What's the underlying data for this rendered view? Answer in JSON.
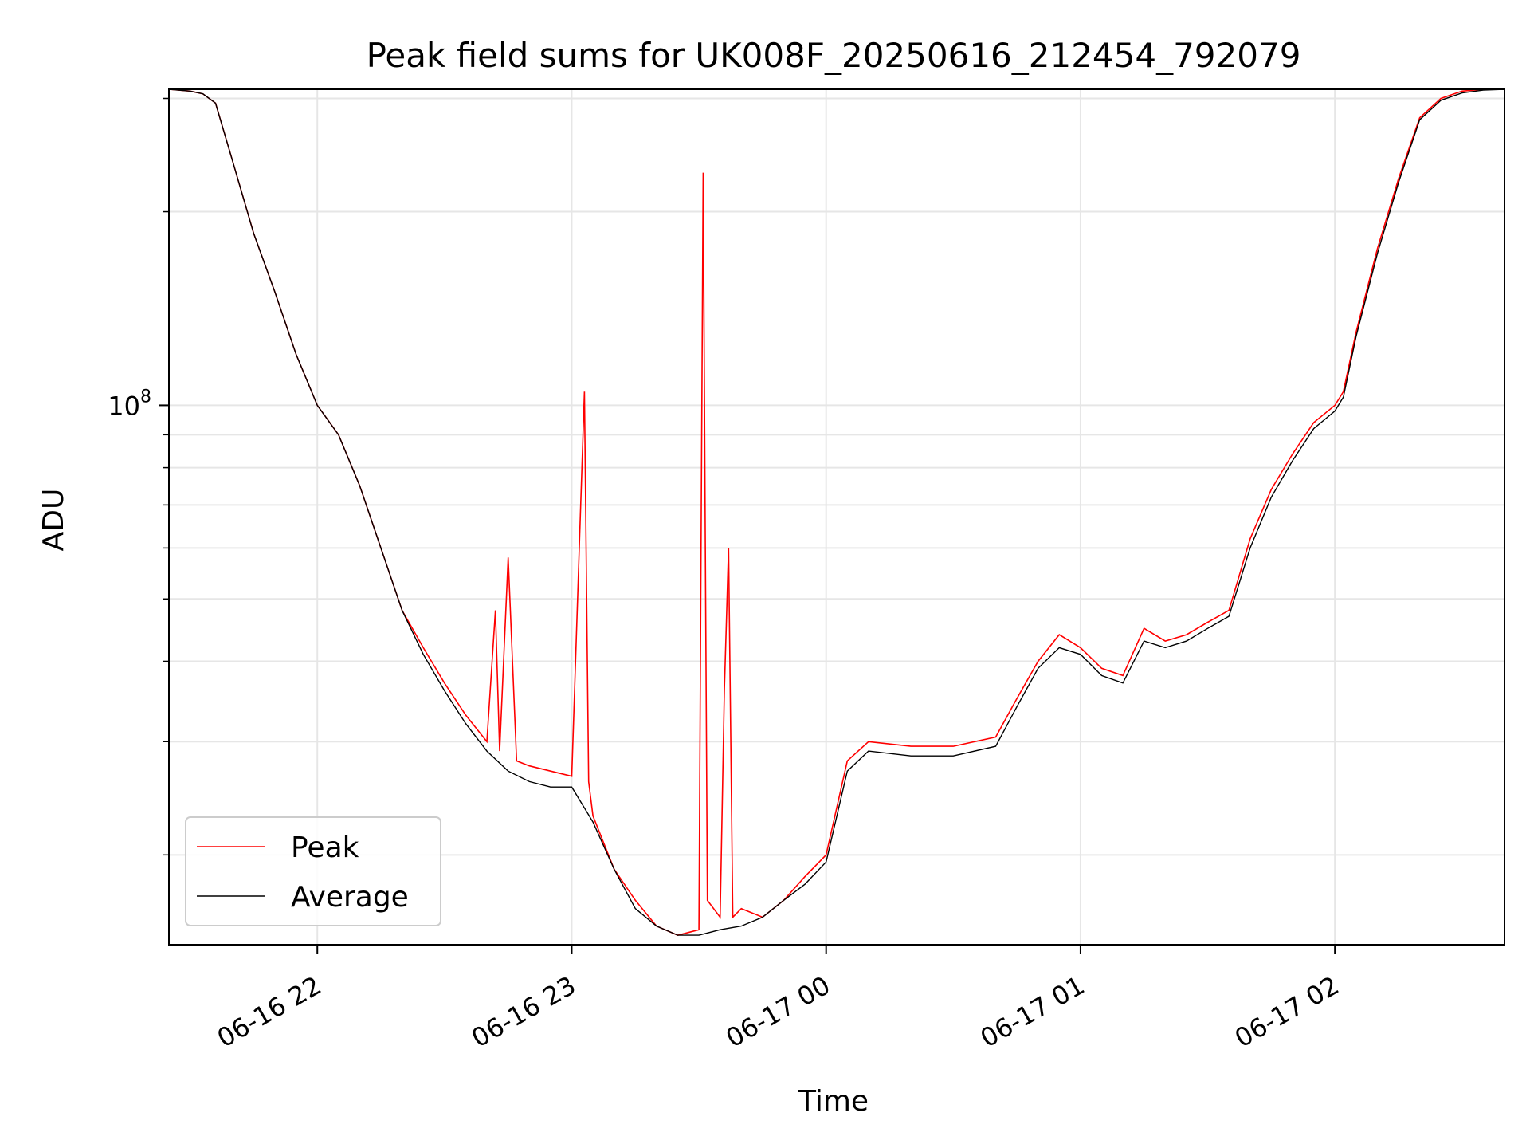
{
  "chart_data": {
    "type": "line",
    "title": "Peak field sums for UK008F_20250616_212454_792079",
    "xlabel": "Time",
    "ylabel": "ADU",
    "yscale": "log",
    "ylim": [
      14500000,
      310000000
    ],
    "xlim": [
      "2025-06-16 21:25",
      "2025-06-17 02:40"
    ],
    "x_ticks": [
      {
        "value": "2025-06-16 22:00",
        "label": "06-16 22"
      },
      {
        "value": "2025-06-16 23:00",
        "label": "06-16 23"
      },
      {
        "value": "2025-06-17 00:00",
        "label": "06-17 00"
      },
      {
        "value": "2025-06-17 01:00",
        "label": "06-17 01"
      },
      {
        "value": "2025-06-17 02:00",
        "label": "06-17 02"
      }
    ],
    "y_ticks": [
      {
        "value": 100000000,
        "label": "10",
        "exponent": "8"
      }
    ],
    "grid": true,
    "legend_position": "lower-left",
    "series": [
      {
        "name": "Peak",
        "color": "#ff0000",
        "x": [
          "2025-06-16 21:25",
          "2025-06-16 21:30",
          "2025-06-16 21:33",
          "2025-06-16 21:36",
          "2025-06-16 21:40",
          "2025-06-16 21:45",
          "2025-06-16 21:50",
          "2025-06-16 21:55",
          "2025-06-16 22:00",
          "2025-06-16 22:05",
          "2025-06-16 22:10",
          "2025-06-16 22:15",
          "2025-06-16 22:20",
          "2025-06-16 22:25",
          "2025-06-16 22:30",
          "2025-06-16 22:35",
          "2025-06-16 22:40",
          "2025-06-16 22:42",
          "2025-06-16 22:43",
          "2025-06-16 22:45",
          "2025-06-16 22:47",
          "2025-06-16 22:50",
          "2025-06-16 22:55",
          "2025-06-16 23:00",
          "2025-06-16 23:03",
          "2025-06-16 23:04",
          "2025-06-16 23:05",
          "2025-06-16 23:10",
          "2025-06-16 23:15",
          "2025-06-16 23:20",
          "2025-06-16 23:25",
          "2025-06-16 23:30",
          "2025-06-16 23:31",
          "2025-06-16 23:32",
          "2025-06-16 23:35",
          "2025-06-16 23:36",
          "2025-06-16 23:37",
          "2025-06-16 23:38",
          "2025-06-16 23:40",
          "2025-06-16 23:45",
          "2025-06-16 23:50",
          "2025-06-16 23:55",
          "2025-06-17 00:00",
          "2025-06-17 00:05",
          "2025-06-17 00:10",
          "2025-06-17 00:20",
          "2025-06-17 00:30",
          "2025-06-17 00:40",
          "2025-06-17 00:45",
          "2025-06-17 00:50",
          "2025-06-17 00:55",
          "2025-06-17 01:00",
          "2025-06-17 01:05",
          "2025-06-17 01:10",
          "2025-06-17 01:15",
          "2025-06-17 01:20",
          "2025-06-17 01:25",
          "2025-06-17 01:30",
          "2025-06-17 01:35",
          "2025-06-17 01:40",
          "2025-06-17 01:45",
          "2025-06-17 01:50",
          "2025-06-17 01:55",
          "2025-06-17 02:00",
          "2025-06-17 02:02",
          "2025-06-17 02:05",
          "2025-06-17 02:10",
          "2025-06-17 02:15",
          "2025-06-17 02:20",
          "2025-06-17 02:25",
          "2025-06-17 02:30",
          "2025-06-17 02:35",
          "2025-06-17 02:40"
        ],
        "y": [
          310000000,
          308000000,
          305000000,
          295000000,
          240000000,
          185000000,
          150000000,
          120000000,
          100000000,
          90000000,
          75000000,
          60000000,
          48000000,
          42000000,
          37000000,
          33000000,
          30000000,
          48000000,
          29000000,
          58000000,
          28000000,
          27500000,
          27000000,
          26500000,
          105000000,
          26000000,
          23000000,
          19000000,
          17000000,
          15500000,
          15000000,
          15300000,
          230000000,
          17000000,
          16000000,
          36000000,
          60000000,
          16000000,
          16500000,
          16000000,
          17000000,
          18500000,
          20000000,
          28000000,
          30000000,
          29500000,
          29500000,
          30500000,
          35000000,
          40000000,
          44000000,
          42000000,
          39000000,
          38000000,
          45000000,
          43000000,
          44000000,
          46000000,
          48000000,
          62000000,
          74000000,
          84000000,
          94000000,
          100000000,
          105000000,
          130000000,
          175000000,
          225000000,
          280000000,
          300000000,
          308000000,
          310000000,
          310000000
        ]
      },
      {
        "name": "Average",
        "color": "#000000",
        "x": [
          "2025-06-16 21:25",
          "2025-06-16 21:30",
          "2025-06-16 21:33",
          "2025-06-16 21:36",
          "2025-06-16 21:40",
          "2025-06-16 21:45",
          "2025-06-16 21:50",
          "2025-06-16 21:55",
          "2025-06-16 22:00",
          "2025-06-16 22:05",
          "2025-06-16 22:10",
          "2025-06-16 22:15",
          "2025-06-16 22:20",
          "2025-06-16 22:25",
          "2025-06-16 22:30",
          "2025-06-16 22:35",
          "2025-06-16 22:40",
          "2025-06-16 22:45",
          "2025-06-16 22:50",
          "2025-06-16 22:55",
          "2025-06-16 23:00",
          "2025-06-16 23:05",
          "2025-06-16 23:10",
          "2025-06-16 23:15",
          "2025-06-16 23:20",
          "2025-06-16 23:25",
          "2025-06-16 23:30",
          "2025-06-16 23:35",
          "2025-06-16 23:40",
          "2025-06-16 23:45",
          "2025-06-16 23:50",
          "2025-06-16 23:55",
          "2025-06-17 00:00",
          "2025-06-17 00:05",
          "2025-06-17 00:10",
          "2025-06-17 00:20",
          "2025-06-17 00:30",
          "2025-06-17 00:40",
          "2025-06-17 00:45",
          "2025-06-17 00:50",
          "2025-06-17 00:55",
          "2025-06-17 01:00",
          "2025-06-17 01:05",
          "2025-06-17 01:10",
          "2025-06-17 01:15",
          "2025-06-17 01:20",
          "2025-06-17 01:25",
          "2025-06-17 01:30",
          "2025-06-17 01:35",
          "2025-06-17 01:40",
          "2025-06-17 01:45",
          "2025-06-17 01:50",
          "2025-06-17 01:55",
          "2025-06-17 02:00",
          "2025-06-17 02:02",
          "2025-06-17 02:05",
          "2025-06-17 02:10",
          "2025-06-17 02:15",
          "2025-06-17 02:20",
          "2025-06-17 02:25",
          "2025-06-17 02:30",
          "2025-06-17 02:35",
          "2025-06-17 02:40"
        ],
        "y": [
          310000000,
          308000000,
          305000000,
          295000000,
          240000000,
          185000000,
          150000000,
          120000000,
          100000000,
          90000000,
          75000000,
          60000000,
          48000000,
          41000000,
          36000000,
          32000000,
          29000000,
          27000000,
          26000000,
          25500000,
          25500000,
          22500000,
          19000000,
          16500000,
          15500000,
          15000000,
          15000000,
          15300000,
          15500000,
          16000000,
          17000000,
          18000000,
          19500000,
          27000000,
          29000000,
          28500000,
          28500000,
          29500000,
          34000000,
          39000000,
          42000000,
          41000000,
          38000000,
          37000000,
          43000000,
          42000000,
          43000000,
          45000000,
          47000000,
          60000000,
          72000000,
          82000000,
          92000000,
          98000000,
          103000000,
          128000000,
          172000000,
          222000000,
          278000000,
          298000000,
          306000000,
          309000000,
          310000000
        ]
      }
    ]
  }
}
